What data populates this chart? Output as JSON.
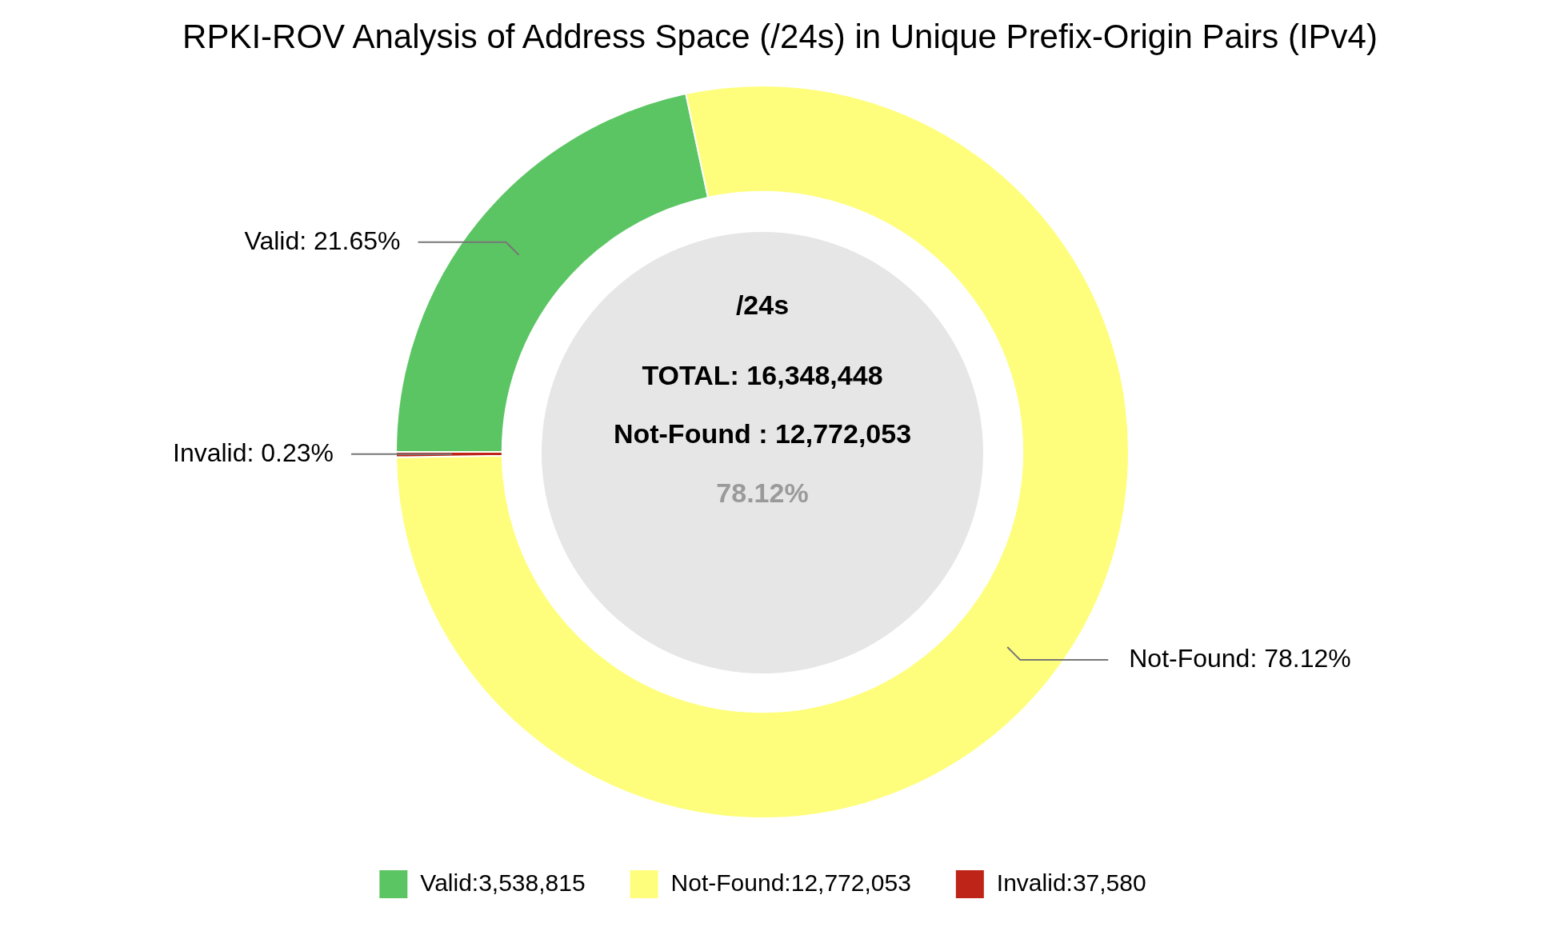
{
  "chart_data": {
    "type": "donut",
    "title": "RPKI-ROV Analysis of Address Space (/24s) in Unique Prefix-Origin Pairs (IPv4)",
    "categories": [
      "Valid:3,538,815",
      "Not-Found:12,772,053",
      "Invalid:37,580"
    ],
    "values": [
      21.65,
      78.12,
      0.23
    ],
    "colors": [
      "#5cc563",
      "#fefe7c",
      "#bf2418"
    ],
    "value_labels": [
      "Valid: 21.65%",
      "Not-Found: 78.12%",
      "Invalid: 0.23%"
    ],
    "annotations": [
      "/24s",
      "TOTAL: 16,348,448",
      "Not-Found : 12,772,053",
      "78.12%"
    ],
    "legend": "bottom"
  }
}
